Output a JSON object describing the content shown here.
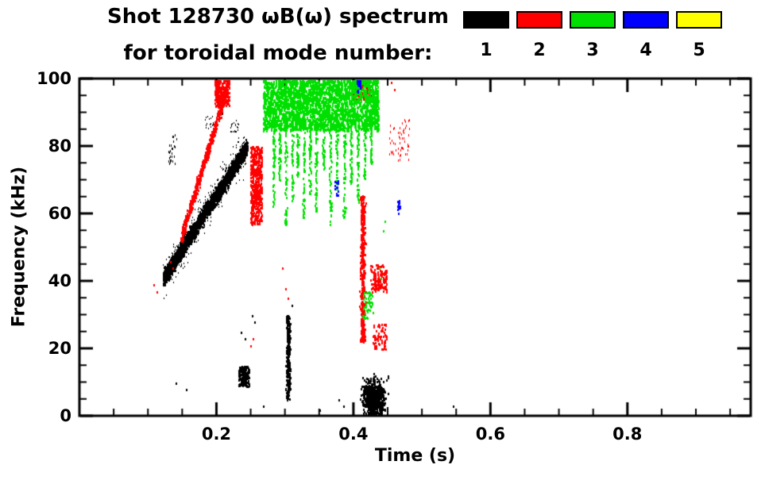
{
  "title": {
    "line1": "Shot 128730 ωB(ω) spectrum",
    "line2": "for toroidal mode number:"
  },
  "legend": {
    "entries": [
      {
        "label": "1",
        "color": "#000000"
      },
      {
        "label": "2",
        "color": "#ff0000"
      },
      {
        "label": "3",
        "color": "#00e000"
      },
      {
        "label": "4",
        "color": "#0000ff"
      },
      {
        "label": "5",
        "color": "#ffff00"
      }
    ]
  },
  "chart_data": {
    "type": "scatter",
    "title": "Shot 128730 ωB(ω) spectrum for toroidal mode number 1-5",
    "xlabel": "Time (s)",
    "ylabel": "Frequency (kHz)",
    "xlim": [
      0,
      0.98
    ],
    "ylim": [
      0,
      100
    ],
    "xticks": [
      0.2,
      0.4,
      0.6,
      0.8
    ],
    "xtick_labels": [
      "0.2",
      "0.4",
      "0.6",
      "0.8"
    ],
    "yticks": [
      0,
      20,
      40,
      60,
      80,
      100
    ],
    "ytick_labels": [
      "0",
      "20",
      "40",
      "60",
      "80",
      "100"
    ],
    "x_minor_step": 0.05,
    "y_minor_step": 5,
    "grid": false,
    "legend_position": "top-right",
    "frame_color": "#000000",
    "series": [
      {
        "name": "n=1",
        "color": "#000000",
        "features": [
          {
            "kind": "band",
            "t": [
              0.122,
              0.244
            ],
            "f": [
              41,
              80
            ],
            "spread": 3.5,
            "n": 2400
          },
          {
            "kind": "band",
            "t": [
              0.122,
              0.244
            ],
            "f": [
              41,
              80
            ],
            "spread": 8.5,
            "n": 450,
            "pw": 1,
            "ph": 2
          },
          {
            "kind": "blob",
            "t": [
              0.13,
              0.142
            ],
            "f": [
              74,
              84
            ],
            "n": 26,
            "pw": 1,
            "ph": 3
          },
          {
            "kind": "blob",
            "t": [
              0.183,
              0.197
            ],
            "f": [
              85,
              89
            ],
            "n": 16,
            "pw": 1,
            "ph": 2
          },
          {
            "kind": "blob",
            "t": [
              0.22,
              0.232
            ],
            "f": [
              84,
              88
            ],
            "n": 20,
            "pw": 1,
            "ph": 2
          },
          {
            "kind": "vstreak",
            "t": 0.304,
            "w": 0.004,
            "f": [
              5,
              30
            ],
            "n": 330
          },
          {
            "kind": "blob",
            "t": [
              0.232,
              0.247
            ],
            "f": [
              9,
              15
            ],
            "n": 150
          },
          {
            "kind": "blob",
            "t": [
              0.405,
              0.452
            ],
            "f": [
              0,
              11
            ],
            "n": 700,
            "dist": "gauss"
          },
          {
            "kind": "dots",
            "points": [
              [
                0.14,
                10
              ],
              [
                0.155,
                8
              ],
              [
                0.252,
                30
              ],
              [
                0.255,
                28
              ],
              [
                0.268,
                3
              ],
              [
                0.35,
                2
              ],
              [
                0.378,
                5
              ],
              [
                0.385,
                3
              ],
              [
                0.545,
                3
              ],
              [
                0.236,
                25
              ],
              [
                0.241,
                23
              ],
              [
                0.31,
                33
              ],
              [
                0.208,
                90
              ]
            ]
          }
        ]
      },
      {
        "name": "n=2",
        "color": "#ff0000",
        "features": [
          {
            "kind": "band",
            "t": [
              0.148,
              0.214
            ],
            "f": [
              53,
              97
            ],
            "spread": 3,
            "n": 620
          },
          {
            "kind": "blob",
            "t": [
              0.197,
              0.218
            ],
            "f": [
              92,
              100
            ],
            "n": 280
          },
          {
            "kind": "blob",
            "t": [
              0.249,
              0.266
            ],
            "f": [
              57,
              80
            ],
            "n": 480
          },
          {
            "kind": "vstreak",
            "t": 0.413,
            "w": 0.005,
            "f": [
              22,
              66
            ],
            "n": 430
          },
          {
            "kind": "blob",
            "t": [
              0.424,
              0.448
            ],
            "f": [
              37,
              45
            ],
            "n": 150
          },
          {
            "kind": "blob",
            "t": [
              0.428,
              0.448
            ],
            "f": [
              20,
              28
            ],
            "n": 70
          },
          {
            "kind": "blob",
            "t": [
              0.398,
              0.424
            ],
            "f": [
              94,
              100
            ],
            "n": 160
          },
          {
            "kind": "blob",
            "t": [
              0.452,
              0.482
            ],
            "f": [
              76,
              88
            ],
            "n": 55,
            "pw": 1,
            "ph": 3
          },
          {
            "kind": "dots",
            "points": [
              [
                0.132,
                46
              ],
              [
                0.136,
                44
              ],
              [
                0.108,
                39
              ],
              [
                0.112,
                37
              ],
              [
                0.253,
                23
              ],
              [
                0.249,
                21
              ],
              [
                0.3,
                38
              ],
              [
                0.304,
                35
              ],
              [
                0.455,
                99
              ],
              [
                0.459,
                97
              ],
              [
                0.296,
                44
              ]
            ]
          }
        ]
      },
      {
        "name": "n=3",
        "color": "#00e000",
        "features": [
          {
            "kind": "blob",
            "t": [
              0.268,
              0.436
            ],
            "f": [
              85,
              100
            ],
            "n": 2300,
            "pw": 2,
            "ph": 4
          },
          {
            "kind": "vstreaks",
            "w": 0.0025,
            "per": 55,
            "streaks": [
              [
                0.283,
                62,
                86
              ],
              [
                0.292,
                70,
                88
              ],
              [
                0.301,
                57,
                86
              ],
              [
                0.31,
                64,
                90
              ],
              [
                0.318,
                71,
                88
              ],
              [
                0.327,
                58,
                86
              ],
              [
                0.336,
                66,
                88
              ],
              [
                0.345,
                61,
                86
              ],
              [
                0.356,
                73,
                90
              ],
              [
                0.366,
                56,
                86
              ],
              [
                0.375,
                66,
                88
              ],
              [
                0.386,
                59,
                86
              ],
              [
                0.396,
                69,
                88
              ],
              [
                0.406,
                63,
                87
              ],
              [
                0.416,
                70,
                88
              ],
              [
                0.425,
                75,
                90
              ]
            ]
          },
          {
            "kind": "blob",
            "t": [
              0.413,
              0.428
            ],
            "f": [
              29,
              38
            ],
            "n": 45
          },
          {
            "kind": "dots",
            "points": [
              [
                0.437,
                44
              ],
              [
                0.44,
                41
              ],
              [
                0.443,
                55
              ],
              [
                0.445,
                58
              ]
            ]
          }
        ]
      },
      {
        "name": "n=4",
        "color": "#0000ff",
        "features": [
          {
            "kind": "blob",
            "t": [
              0.371,
              0.377
            ],
            "f": [
              65,
              70
            ],
            "n": 16
          },
          {
            "kind": "blob",
            "t": [
              0.404,
              0.41
            ],
            "f": [
              96,
              100
            ],
            "n": 22
          },
          {
            "kind": "blob",
            "t": [
              0.462,
              0.468
            ],
            "f": [
              60,
              64
            ],
            "n": 14
          }
        ]
      },
      {
        "name": "n=5",
        "color": "#ffff00",
        "features": []
      }
    ]
  }
}
